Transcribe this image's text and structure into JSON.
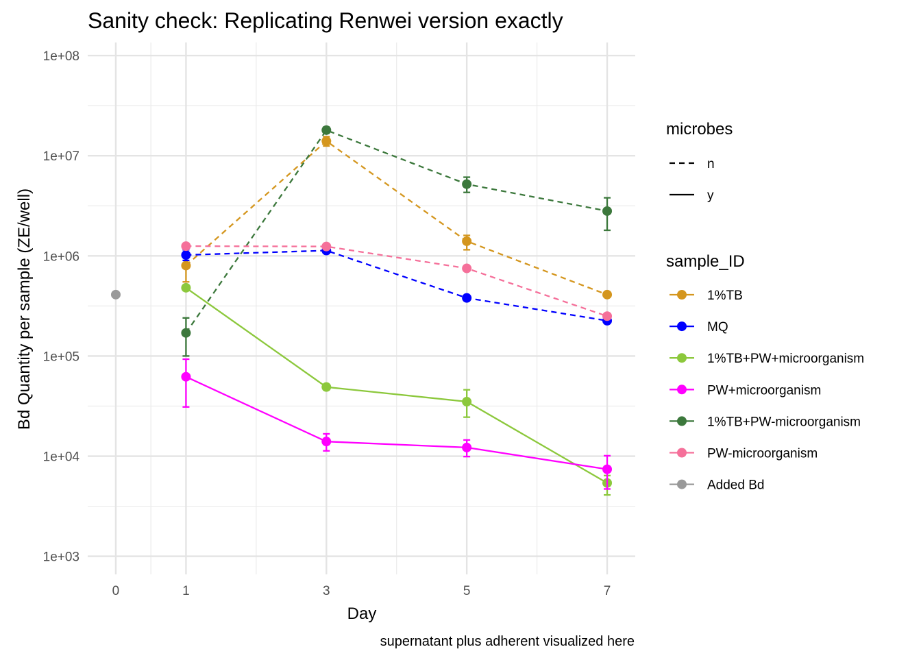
{
  "chart_data": {
    "type": "line",
    "title": "Sanity check: Replicating Renwei version exactly",
    "xlabel": "Day",
    "ylabel": "Bd Quantity per sample (ZE/well)",
    "caption": "supernatant plus adherent visualized here",
    "x_ticks": [
      0,
      1,
      3,
      5,
      7
    ],
    "xlim": [
      -0.4,
      7.4
    ],
    "y_scale": "log10",
    "ylim": [
      660,
      135000000
    ],
    "y_ticks": [
      {
        "value": 1000,
        "label": "1e+03"
      },
      {
        "value": 10000,
        "label": "1e+04"
      },
      {
        "value": 100000,
        "label": "1e+05"
      },
      {
        "value": 1000000,
        "label": "1e+06"
      },
      {
        "value": 10000000,
        "label": "1e+07"
      },
      {
        "value": 100000000,
        "label": "1e+08"
      }
    ],
    "grid": true,
    "legends": [
      {
        "title": "microbes",
        "entries": [
          {
            "label": "n",
            "linetype": "dashed"
          },
          {
            "label": "y",
            "linetype": "solid"
          }
        ]
      },
      {
        "title": "sample_ID",
        "entries": [
          {
            "label": "1%TB",
            "color": "#D4961E"
          },
          {
            "label": "MQ",
            "color": "#0000FF"
          },
          {
            "label": "1%TB+PW+microorganism",
            "color": "#8CC83C"
          },
          {
            "label": "PW+microorganism",
            "color": "#FF00FF"
          },
          {
            "label": "1%TB+PW-microorganism",
            "color": "#3C783C"
          },
          {
            "label": "PW-microorganism",
            "color": "#F5709A"
          },
          {
            "label": "Added Bd",
            "color": "#999999"
          }
        ]
      }
    ],
    "series": [
      {
        "name": "1%TB",
        "color": "#D4961E",
        "linetype": "dashed",
        "points": [
          {
            "x": 1,
            "y": 800000,
            "ymin": 550000,
            "ymax": 1050000
          },
          {
            "x": 3,
            "y": 14000000,
            "ymin": 12500000,
            "ymax": 15500000
          },
          {
            "x": 5,
            "y": 1400000,
            "ymin": 1150000,
            "ymax": 1600000
          },
          {
            "x": 7,
            "y": 410000,
            "ymin": 390000,
            "ymax": 430000
          }
        ]
      },
      {
        "name": "MQ",
        "color": "#0000FF",
        "linetype": "dashed",
        "points": [
          {
            "x": 1,
            "y": 1020000,
            "ymin": 900000,
            "ymax": 1150000
          },
          {
            "x": 3,
            "y": 1130000,
            "ymin": 1080000,
            "ymax": 1190000
          },
          {
            "x": 5,
            "y": 380000,
            "ymin": 365000,
            "ymax": 395000
          },
          {
            "x": 7,
            "y": 225000,
            "ymin": 215000,
            "ymax": 235000
          }
        ]
      },
      {
        "name": "1%TB+PW+microorganism",
        "color": "#8CC83C",
        "linetype": "solid",
        "points": [
          {
            "x": 1,
            "y": 480000,
            "ymin": 450000,
            "ymax": 510000
          },
          {
            "x": 3,
            "y": 49000,
            "ymin": 46000,
            "ymax": 52000
          },
          {
            "x": 5,
            "y": 35000,
            "ymin": 24500,
            "ymax": 46000
          },
          {
            "x": 7,
            "y": 5400,
            "ymin": 4100,
            "ymax": 6400
          }
        ]
      },
      {
        "name": "PW+microorganism",
        "color": "#FF00FF",
        "linetype": "solid",
        "points": [
          {
            "x": 1,
            "y": 62000,
            "ymin": 31000,
            "ymax": 93000
          },
          {
            "x": 3,
            "y": 14000,
            "ymin": 11300,
            "ymax": 16700
          },
          {
            "x": 5,
            "y": 12200,
            "ymin": 9900,
            "ymax": 14500
          },
          {
            "x": 7,
            "y": 7400,
            "ymin": 4700,
            "ymax": 10100
          }
        ]
      },
      {
        "name": "1%TB+PW-microorganism",
        "color": "#3C783C",
        "linetype": "dashed",
        "points": [
          {
            "x": 1,
            "y": 170000,
            "ymin": 100000,
            "ymax": 240000
          },
          {
            "x": 3,
            "y": 18000000,
            "ymin": 16800000,
            "ymax": 19300000
          },
          {
            "x": 5,
            "y": 5200000,
            "ymin": 4300000,
            "ymax": 6100000
          },
          {
            "x": 7,
            "y": 2800000,
            "ymin": 1800000,
            "ymax": 3800000
          }
        ]
      },
      {
        "name": "PW-microorganism",
        "color": "#F5709A",
        "linetype": "dashed",
        "points": [
          {
            "x": 1,
            "y": 1250000,
            "ymin": 1210000,
            "ymax": 1290000
          },
          {
            "x": 3,
            "y": 1240000,
            "ymin": 1200000,
            "ymax": 1280000
          },
          {
            "x": 5,
            "y": 750000,
            "ymin": 730000,
            "ymax": 770000
          },
          {
            "x": 7,
            "y": 250000,
            "ymin": 240000,
            "ymax": 260000
          }
        ]
      },
      {
        "name": "Added Bd",
        "color": "#999999",
        "linetype": "none",
        "points": [
          {
            "x": 0,
            "y": 410000
          }
        ]
      }
    ]
  }
}
